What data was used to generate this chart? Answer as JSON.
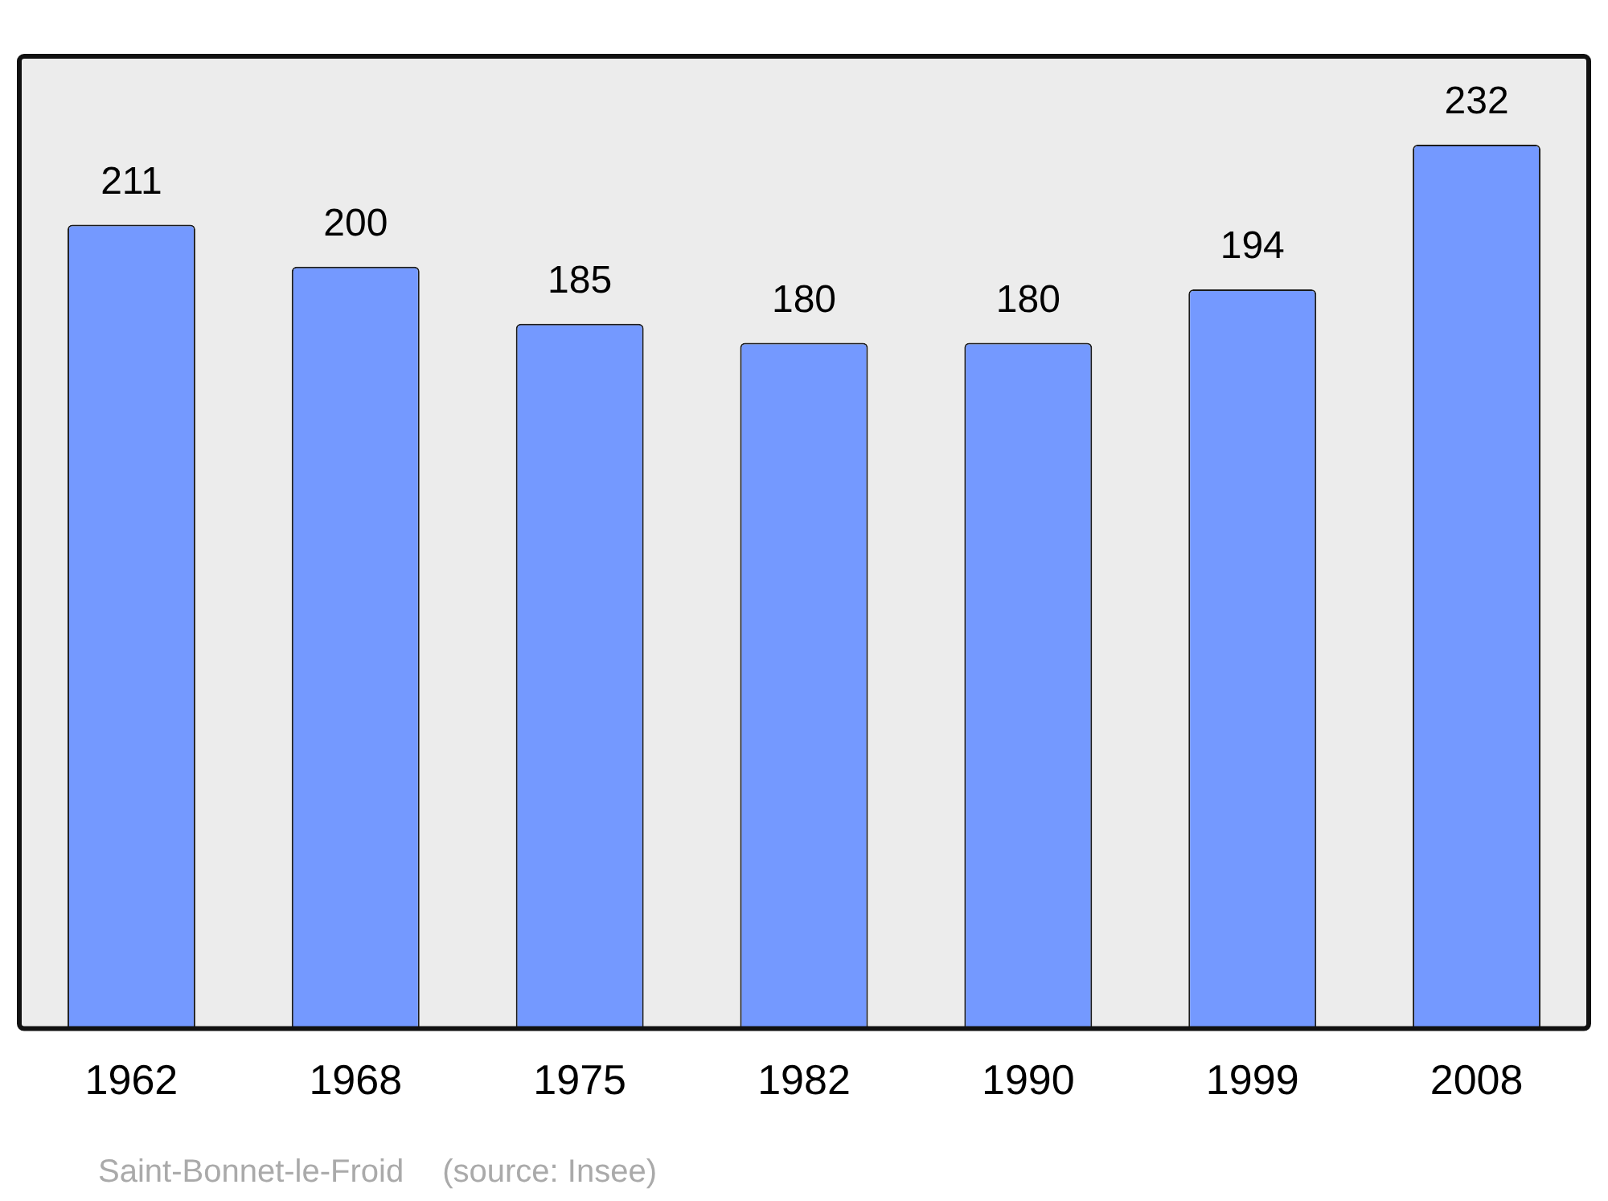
{
  "chart_data": {
    "type": "bar",
    "categories": [
      "1962",
      "1968",
      "1975",
      "1982",
      "1990",
      "1999",
      "2008"
    ],
    "values": [
      211,
      200,
      185,
      180,
      180,
      194,
      232
    ],
    "color": "#7499ff",
    "data_labels": true,
    "grid": false,
    "legend": false,
    "annotations": [
      "Saint-Bonnet-le-Froid",
      "(source: Insee)"
    ]
  }
}
